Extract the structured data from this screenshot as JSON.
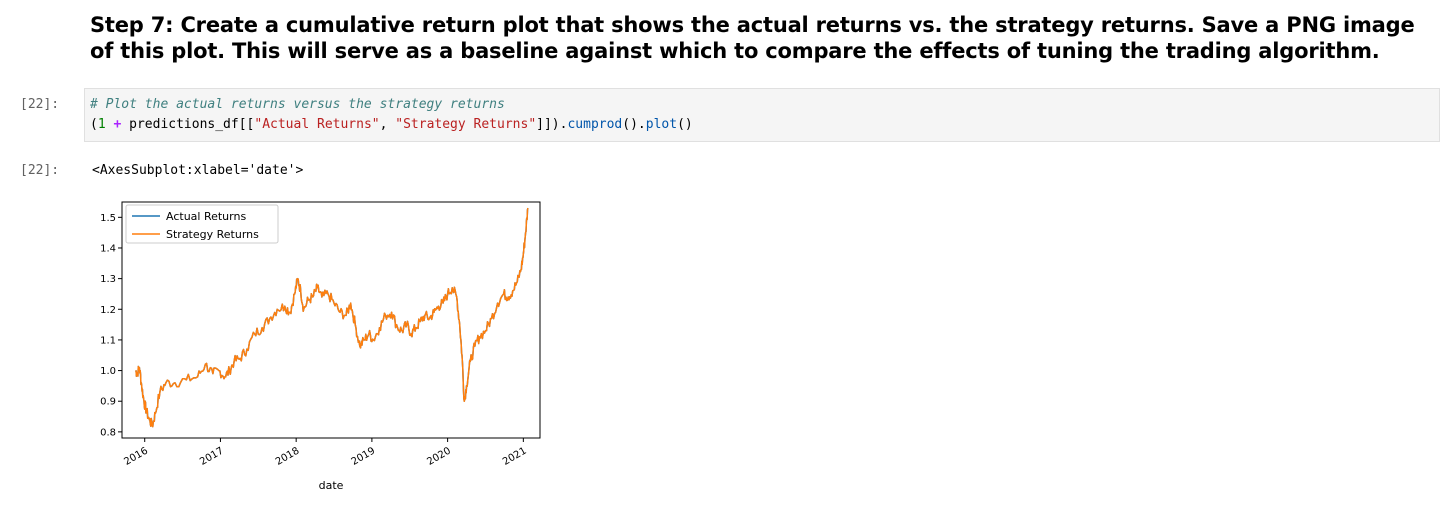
{
  "markdown": {
    "heading": "Step 7: Create a cumulative return plot that shows the actual returns vs. the strategy returns. Save a PNG image of this plot. This will serve as a baseline against which to compare the effects of tuning the trading algorithm."
  },
  "code_cell": {
    "prompt": "[22]:",
    "comment": "# Plot the actual returns versus the strategy returns",
    "code": {
      "open_paren": "(",
      "one": "1",
      "plus": "+",
      "df_open": "predictions_df[[",
      "col_actual": "\"Actual Returns\"",
      "comma": ", ",
      "col_strategy": "\"Strategy Returns\"",
      "df_close": "]]).",
      "cumprod": "cumprod",
      "mid": "().",
      "plot_fn": "plot",
      "end": "()"
    }
  },
  "output_cell": {
    "prompt": "[22]:",
    "text": "<AxesSubplot:xlabel='date'>"
  },
  "colors": {
    "actual": "#1f77b4",
    "strategy": "#ff7f0e"
  },
  "chart_data": {
    "type": "line",
    "title": "",
    "xlabel": "date",
    "ylabel": "",
    "xlim": [
      2015.7,
      2021.22
    ],
    "ylim": [
      0.78,
      1.55
    ],
    "x_ticks": [
      2016,
      2017,
      2018,
      2019,
      2020,
      2021
    ],
    "x_tick_labels": [
      "2016",
      "2017",
      "2018",
      "2019",
      "2020",
      "2021"
    ],
    "y_ticks": [
      0.8,
      0.9,
      1.0,
      1.1,
      1.2,
      1.3,
      1.4,
      1.5
    ],
    "y_tick_labels": [
      "0.8",
      "0.9",
      "1.0",
      "1.1",
      "1.2",
      "1.3",
      "1.4",
      "1.5"
    ],
    "grid": false,
    "legend_position": "top-left",
    "series": [
      {
        "name": "Actual Returns",
        "color": "#1f77b4",
        "x": [
          2015.88,
          2015.9,
          2015.93,
          2015.96,
          2015.99,
          2016.02,
          2016.06,
          2016.1,
          2016.14,
          2016.2,
          2016.28,
          2016.4,
          2016.55,
          2016.7,
          2016.8,
          2016.9,
          2016.98,
          2017.06,
          2017.12,
          2017.18,
          2017.26,
          2017.35,
          2017.45,
          2017.55,
          2017.65,
          2017.75,
          2017.85,
          2017.92,
          2017.98,
          2018.02,
          2018.06,
          2018.1,
          2018.16,
          2018.22,
          2018.28,
          2018.34,
          2018.42,
          2018.5,
          2018.58,
          2018.66,
          2018.72,
          2018.78,
          2018.84,
          2018.9,
          2018.96,
          2019.02,
          2019.1,
          2019.18,
          2019.26,
          2019.34,
          2019.4,
          2019.46,
          2019.52,
          2019.58,
          2019.64,
          2019.7,
          2019.76,
          2019.82,
          2019.88,
          2019.94,
          2020.0,
          2020.06,
          2020.12,
          2020.16,
          2020.19,
          2020.22,
          2020.25,
          2020.3,
          2020.36,
          2020.42,
          2020.5,
          2020.58,
          2020.66,
          2020.74,
          2020.8,
          2020.86,
          2020.92,
          2020.97,
          2021.0,
          2021.03,
          2021.06
        ],
        "values": [
          1.0,
          0.99,
          1.01,
          0.95,
          0.9,
          0.87,
          0.84,
          0.82,
          0.86,
          0.93,
          0.96,
          0.96,
          0.97,
          0.98,
          1.02,
          0.99,
          1.0,
          0.98,
          1.0,
          1.03,
          1.04,
          1.07,
          1.12,
          1.14,
          1.17,
          1.2,
          1.21,
          1.19,
          1.25,
          1.3,
          1.26,
          1.2,
          1.23,
          1.24,
          1.27,
          1.24,
          1.25,
          1.22,
          1.19,
          1.18,
          1.22,
          1.15,
          1.08,
          1.1,
          1.12,
          1.1,
          1.14,
          1.18,
          1.19,
          1.14,
          1.13,
          1.15,
          1.12,
          1.14,
          1.16,
          1.18,
          1.17,
          1.19,
          1.21,
          1.22,
          1.25,
          1.27,
          1.24,
          1.15,
          1.05,
          0.9,
          0.95,
          1.03,
          1.08,
          1.11,
          1.13,
          1.17,
          1.22,
          1.25,
          1.24,
          1.26,
          1.29,
          1.33,
          1.38,
          1.45,
          1.53
        ]
      },
      {
        "name": "Strategy Returns",
        "color": "#ff7f0e",
        "x": [
          2015.88,
          2015.9,
          2015.93,
          2015.96,
          2015.99,
          2016.02,
          2016.06,
          2016.1,
          2016.14,
          2016.2,
          2016.28,
          2016.4,
          2016.55,
          2016.7,
          2016.8,
          2016.9,
          2016.98,
          2017.06,
          2017.12,
          2017.18,
          2017.26,
          2017.35,
          2017.45,
          2017.55,
          2017.65,
          2017.75,
          2017.85,
          2017.92,
          2017.98,
          2018.02,
          2018.06,
          2018.1,
          2018.16,
          2018.22,
          2018.28,
          2018.34,
          2018.42,
          2018.5,
          2018.58,
          2018.66,
          2018.72,
          2018.78,
          2018.84,
          2018.9,
          2018.96,
          2019.02,
          2019.1,
          2019.18,
          2019.26,
          2019.34,
          2019.4,
          2019.46,
          2019.52,
          2019.58,
          2019.64,
          2019.7,
          2019.76,
          2019.82,
          2019.88,
          2019.94,
          2020.0,
          2020.06,
          2020.12,
          2020.16,
          2020.19,
          2020.22,
          2020.25,
          2020.3,
          2020.36,
          2020.42,
          2020.5,
          2020.58,
          2020.66,
          2020.74,
          2020.8,
          2020.86,
          2020.92,
          2020.97,
          2021.0,
          2021.03,
          2021.06
        ],
        "values": [
          1.0,
          0.99,
          1.01,
          0.95,
          0.9,
          0.87,
          0.84,
          0.82,
          0.86,
          0.93,
          0.96,
          0.96,
          0.97,
          0.98,
          1.02,
          0.99,
          1.0,
          0.98,
          1.0,
          1.03,
          1.04,
          1.07,
          1.12,
          1.14,
          1.17,
          1.2,
          1.21,
          1.19,
          1.25,
          1.3,
          1.26,
          1.2,
          1.23,
          1.24,
          1.27,
          1.24,
          1.25,
          1.22,
          1.19,
          1.18,
          1.22,
          1.15,
          1.08,
          1.1,
          1.12,
          1.1,
          1.14,
          1.18,
          1.19,
          1.14,
          1.13,
          1.15,
          1.12,
          1.14,
          1.16,
          1.18,
          1.17,
          1.19,
          1.21,
          1.22,
          1.25,
          1.27,
          1.24,
          1.15,
          1.05,
          0.9,
          0.95,
          1.03,
          1.08,
          1.11,
          1.13,
          1.17,
          1.22,
          1.25,
          1.24,
          1.26,
          1.29,
          1.33,
          1.38,
          1.45,
          1.53
        ]
      }
    ]
  }
}
